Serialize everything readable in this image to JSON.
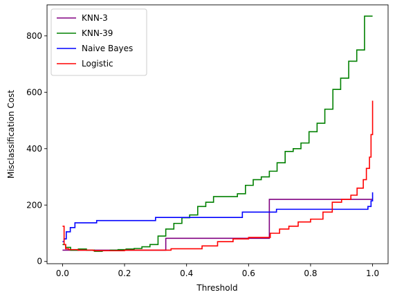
{
  "chart_data": {
    "type": "line",
    "title": "",
    "xlabel": "Threshold",
    "ylabel": "Misclassification Cost",
    "xlim": [
      -0.05,
      1.05
    ],
    "ylim": [
      -8,
      910
    ],
    "xticks": [
      0.0,
      0.2,
      0.4,
      0.6,
      0.8,
      1.0
    ],
    "xtick_labels": [
      "0.0",
      "0.2",
      "0.4",
      "0.6",
      "0.8",
      "1.0"
    ],
    "yticks": [
      0,
      200,
      400,
      600,
      800
    ],
    "ytick_labels": [
      "0",
      "200",
      "400",
      "600",
      "800"
    ],
    "grid": false,
    "legend_position": "top-left",
    "step": true,
    "series": [
      {
        "name": "KNN-3",
        "color": "#800080",
        "x": [
          0.0,
          0.333,
          0.667,
          1.0
        ],
        "y": [
          40,
          82,
          220,
          220
        ]
      },
      {
        "name": "KNN-39",
        "color": "#008000",
        "x": [
          0.0,
          0.01,
          0.026,
          0.051,
          0.077,
          0.103,
          0.128,
          0.154,
          0.179,
          0.205,
          0.231,
          0.256,
          0.282,
          0.308,
          0.333,
          0.359,
          0.385,
          0.41,
          0.436,
          0.462,
          0.487,
          0.513,
          0.538,
          0.564,
          0.59,
          0.615,
          0.641,
          0.667,
          0.692,
          0.718,
          0.744,
          0.769,
          0.795,
          0.821,
          0.846,
          0.872,
          0.897,
          0.923,
          0.949,
          0.974,
          1.0
        ],
        "y": [
          60,
          50,
          40,
          44,
          40,
          36,
          38,
          40,
          42,
          44,
          46,
          52,
          60,
          90,
          115,
          135,
          155,
          165,
          195,
          210,
          230,
          230,
          230,
          240,
          270,
          290,
          300,
          320,
          350,
          390,
          400,
          420,
          460,
          490,
          540,
          610,
          650,
          710,
          750,
          870,
          870
        ]
      },
      {
        "name": "Naive Bayes",
        "color": "#0000ff",
        "x": [
          0.0,
          0.005,
          0.012,
          0.025,
          0.04,
          0.11,
          0.3,
          0.58,
          0.69,
          0.95,
          0.985,
          0.995,
          1.0
        ],
        "y": [
          70,
          80,
          105,
          120,
          137,
          145,
          156,
          175,
          185,
          185,
          195,
          215,
          245
        ]
      },
      {
        "name": "Logistic",
        "color": "#ff0000",
        "x": [
          0.0,
          0.005,
          0.01,
          0.02,
          0.05,
          0.1,
          0.2,
          0.35,
          0.45,
          0.5,
          0.55,
          0.6,
          0.67,
          0.7,
          0.73,
          0.76,
          0.8,
          0.84,
          0.87,
          0.9,
          0.93,
          0.95,
          0.97,
          0.98,
          0.99,
          0.995,
          1.0
        ],
        "y": [
          125,
          60,
          45,
          42,
          40,
          38,
          40,
          45,
          55,
          70,
          80,
          85,
          100,
          115,
          125,
          140,
          150,
          175,
          210,
          220,
          235,
          260,
          290,
          330,
          370,
          450,
          570
        ]
      }
    ]
  }
}
